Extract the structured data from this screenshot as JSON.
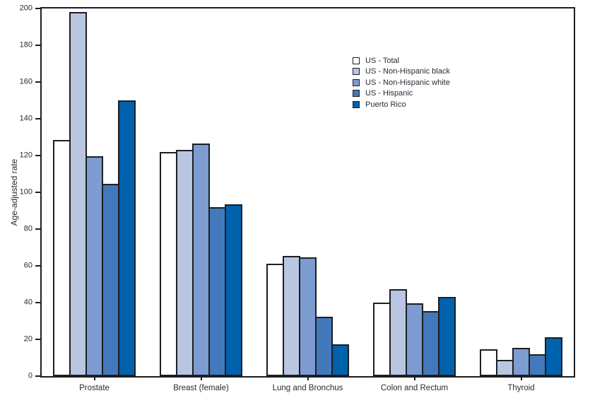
{
  "chart_data": {
    "type": "bar",
    "ylabel": "Age-adjusted rate",
    "xlabel": "",
    "ylim": [
      0,
      200
    ],
    "yticks": [
      0,
      20,
      40,
      60,
      80,
      100,
      120,
      140,
      160,
      180,
      200
    ],
    "grid": false,
    "legend_position": "upper-center",
    "categories": [
      "Prostate",
      "Breast (female)",
      "Lung and Bronchus",
      "Colon and Rectum",
      "Thyroid"
    ],
    "series": [
      {
        "name": "US - Total",
        "color": "#ffffff",
        "values": [
          128.5,
          122.0,
          61.0,
          40.0,
          14.5
        ]
      },
      {
        "name": "US - Non-Hispanic black",
        "color": "#b9c6e2",
        "values": [
          198.0,
          123.0,
          65.5,
          47.5,
          9.0
        ]
      },
      {
        "name": "US - Non-Hispanic white",
        "color": "#7d9cd1",
        "values": [
          119.5,
          126.5,
          64.5,
          39.5,
          15.5
        ]
      },
      {
        "name": "US - Hispanic",
        "color": "#4478bc",
        "values": [
          104.5,
          92.0,
          32.5,
          35.5,
          12.0
        ]
      },
      {
        "name": "Puerto Rico",
        "color": "#0062ad",
        "values": [
          150.0,
          93.5,
          17.5,
          43.0,
          21.0
        ]
      }
    ],
    "colors": {
      "ink": "#1d1e22",
      "text": "#272b35",
      "background": "#ffffff"
    }
  }
}
